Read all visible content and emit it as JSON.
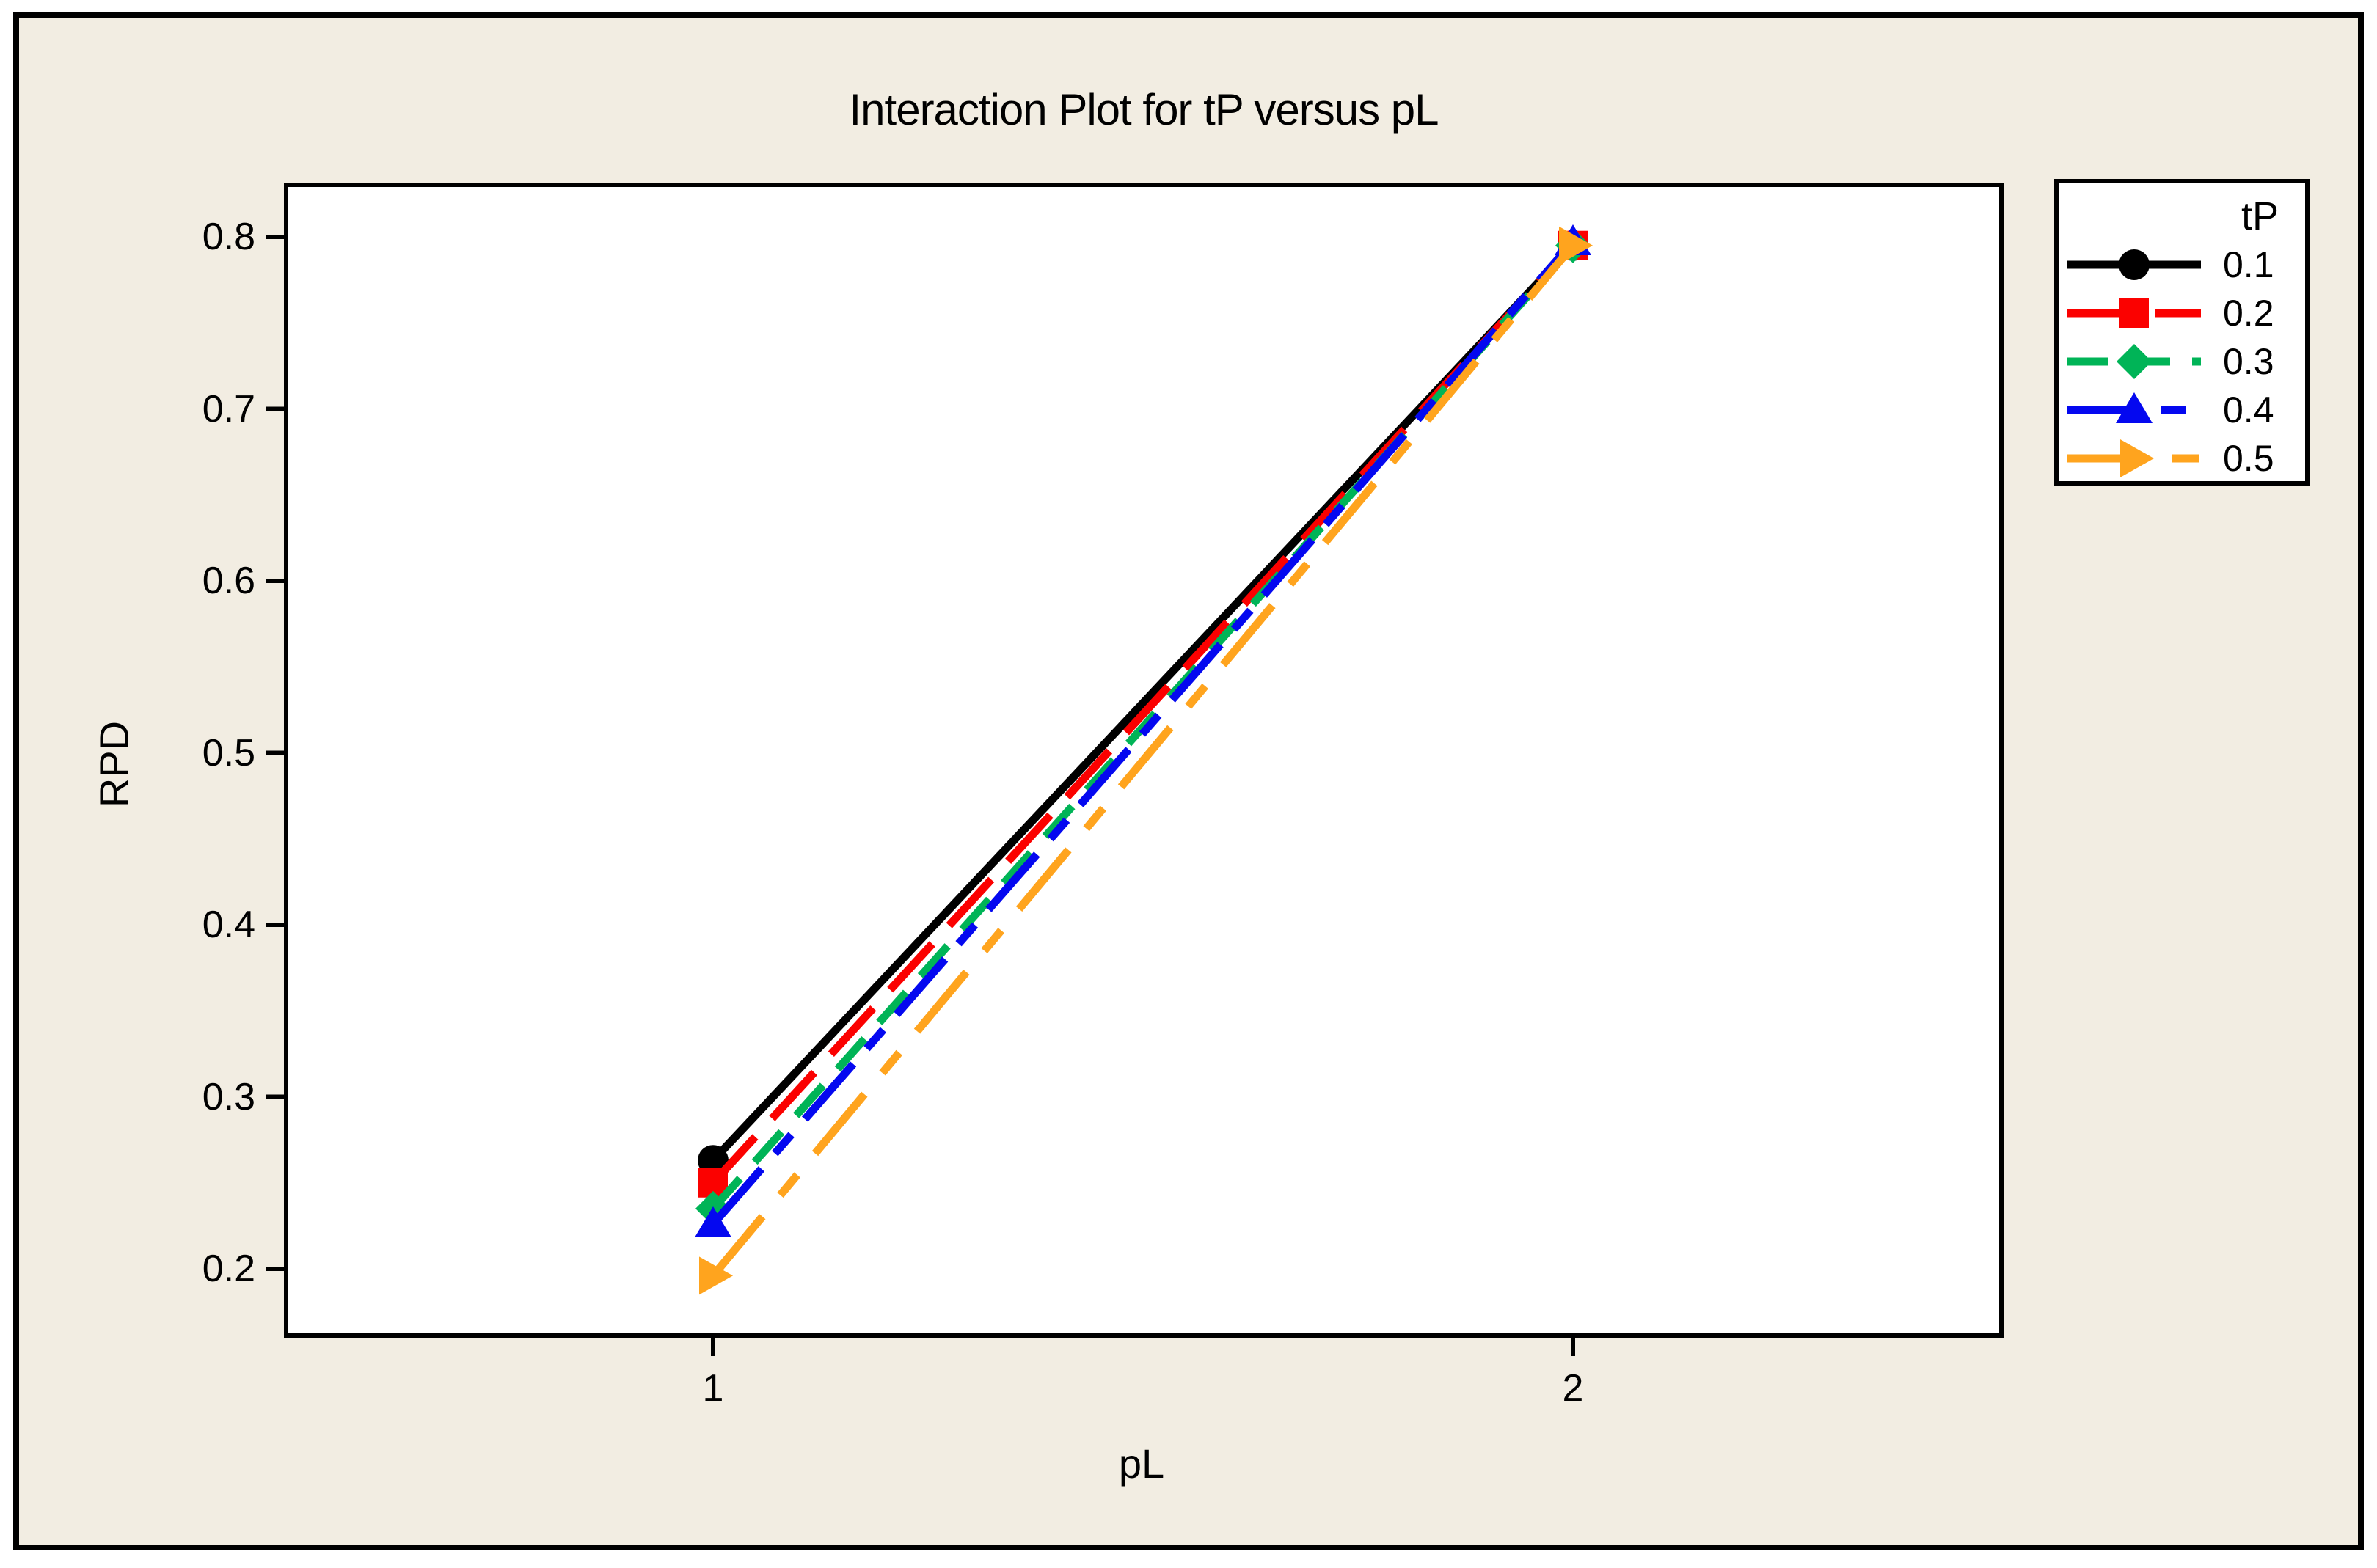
{
  "title": "Interaction Plot for tP versus pL",
  "axes": {
    "x_label": "pL",
    "y_label": "RPD",
    "x_tick_labels": [
      "1",
      "2"
    ],
    "y_tick_labels": [
      "0.2",
      "0.3",
      "0.4",
      "0.5",
      "0.6",
      "0.7",
      "0.8"
    ]
  },
  "legend": {
    "title": "tP"
  },
  "colors": {
    "background": "#F2EDE2",
    "plot_background": "#FFFFFF",
    "frame_border": "#000000",
    "series_black": "#000000",
    "series_red": "#FB0100",
    "series_green": "#00B457",
    "series_blue": "#0408F0",
    "series_orange": "#FFA41E"
  },
  "chart_data": {
    "type": "line",
    "title": "Interaction Plot for tP versus pL",
    "xlabel": "pL",
    "ylabel": "RPD",
    "x": [
      1,
      2
    ],
    "x_tick_labels": [
      "1",
      "2"
    ],
    "y_ticks": [
      0.2,
      0.3,
      0.4,
      0.5,
      0.6,
      0.7,
      0.8
    ],
    "ylim": [
      0.16,
      0.83
    ],
    "grid": false,
    "legend_title": "tP",
    "legend_position": "outside-top-right",
    "series": [
      {
        "name": "0.1",
        "color": "#000000",
        "marker": "circle",
        "line_style": "solid",
        "dash": [],
        "values": [
          0.263,
          0.795
        ]
      },
      {
        "name": "0.2",
        "color": "#FB0100",
        "marker": "square",
        "line_style": "dash",
        "dash": [
          85,
          34
        ],
        "values": [
          0.25,
          0.795
        ]
      },
      {
        "name": "0.3",
        "color": "#00B457",
        "marker": "diamond",
        "line_style": "dash",
        "dash": [
          55,
          30
        ],
        "values": [
          0.235,
          0.795
        ]
      },
      {
        "name": "0.4",
        "color": "#0408F0",
        "marker": "triangle-up",
        "line_style": "dash-dot",
        "dash": [
          100,
          28,
          34,
          28
        ],
        "values": [
          0.226,
          0.797
        ]
      },
      {
        "name": "0.5",
        "color": "#FFA41E",
        "marker": "triangle-right",
        "line_style": "dash-dot",
        "dash": [
          105,
          38,
          36,
          38
        ],
        "values": [
          0.196,
          0.795
        ]
      }
    ]
  }
}
